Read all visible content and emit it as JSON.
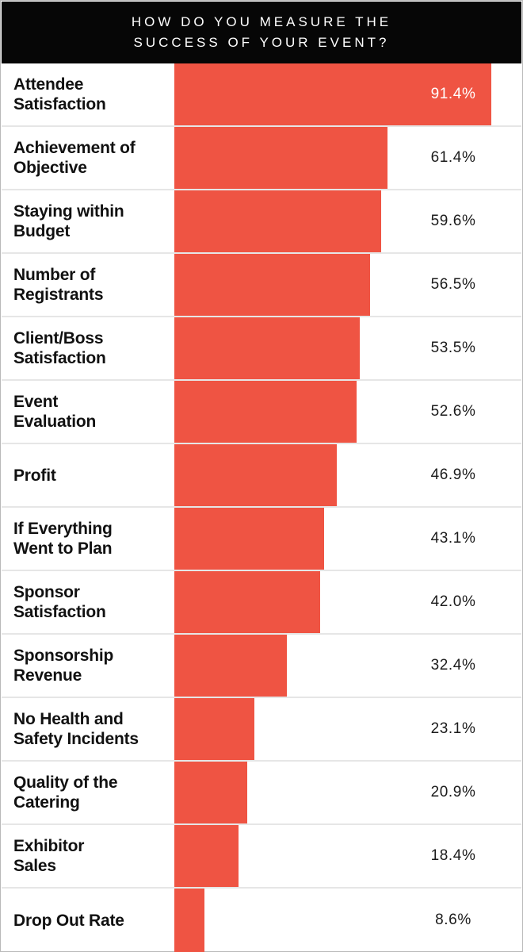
{
  "header": {
    "title": "HOW DO YOU MEASURE THE\nSUCCESS OF YOUR EVENT?"
  },
  "colors": {
    "bar": "#ef5443",
    "header_bg": "#060606",
    "divider": "#d2d2d2",
    "label_text": "#111111",
    "value_text": "#1b1b1b",
    "value_text_inside": "#ffffff"
  },
  "chart_data": {
    "type": "bar",
    "orientation": "horizontal",
    "title": "How do you measure the success of your event?",
    "categories": [
      "Attendee Satisfaction",
      "Achievement of Objective",
      "Staying within Budget",
      "Number of Registrants",
      "Client/Boss Satisfaction",
      "Event Evaluation",
      "Profit",
      "If Everything Went to Plan",
      "Sponsor Satisfaction",
      "Sponsorship Revenue",
      "No Health and Safety Incidents",
      "Quality of the Catering",
      "Exhibitor Sales",
      "Drop Out Rate"
    ],
    "values": [
      91.4,
      61.4,
      59.6,
      56.5,
      53.5,
      52.6,
      46.9,
      43.1,
      42.0,
      32.4,
      23.1,
      20.9,
      18.4,
      8.6
    ],
    "value_suffix": "%",
    "xlabel": "",
    "ylabel": "",
    "xlim": [
      0,
      100
    ],
    "grid": false,
    "legend": false,
    "bar_label_position": "fixed-column-right, white when inside bar"
  },
  "rows": [
    {
      "label": "Attendee\nSatisfaction",
      "value": 91.4,
      "value_label": "91.4%",
      "value_inside": true
    },
    {
      "label": "Achievement of\nObjective",
      "value": 61.4,
      "value_label": "61.4%",
      "value_inside": false
    },
    {
      "label": "Staying within\nBudget",
      "value": 59.6,
      "value_label": "59.6%",
      "value_inside": false
    },
    {
      "label": "Number of\nRegistrants",
      "value": 56.5,
      "value_label": "56.5%",
      "value_inside": false
    },
    {
      "label": "Client/Boss\nSatisfaction",
      "value": 53.5,
      "value_label": "53.5%",
      "value_inside": false
    },
    {
      "label": "Event\nEvaluation",
      "value": 52.6,
      "value_label": "52.6%",
      "value_inside": false
    },
    {
      "label": "Profit",
      "value": 46.9,
      "value_label": "46.9%",
      "value_inside": false
    },
    {
      "label": "If Everything\nWent to Plan",
      "value": 43.1,
      "value_label": "43.1%",
      "value_inside": false
    },
    {
      "label": "Sponsor\nSatisfaction",
      "value": 42.0,
      "value_label": "42.0%",
      "value_inside": false
    },
    {
      "label": "Sponsorship\nRevenue",
      "value": 32.4,
      "value_label": "32.4%",
      "value_inside": false
    },
    {
      "label": "No Health and\nSafety Incidents",
      "value": 23.1,
      "value_label": "23.1%",
      "value_inside": false
    },
    {
      "label": "Quality of the\nCatering",
      "value": 20.9,
      "value_label": "20.9%",
      "value_inside": false
    },
    {
      "label": "Exhibitor\nSales",
      "value": 18.4,
      "value_label": "18.4%",
      "value_inside": false
    },
    {
      "label": "Drop Out Rate",
      "value": 8.6,
      "value_label": "8.6%",
      "value_inside": false
    }
  ]
}
